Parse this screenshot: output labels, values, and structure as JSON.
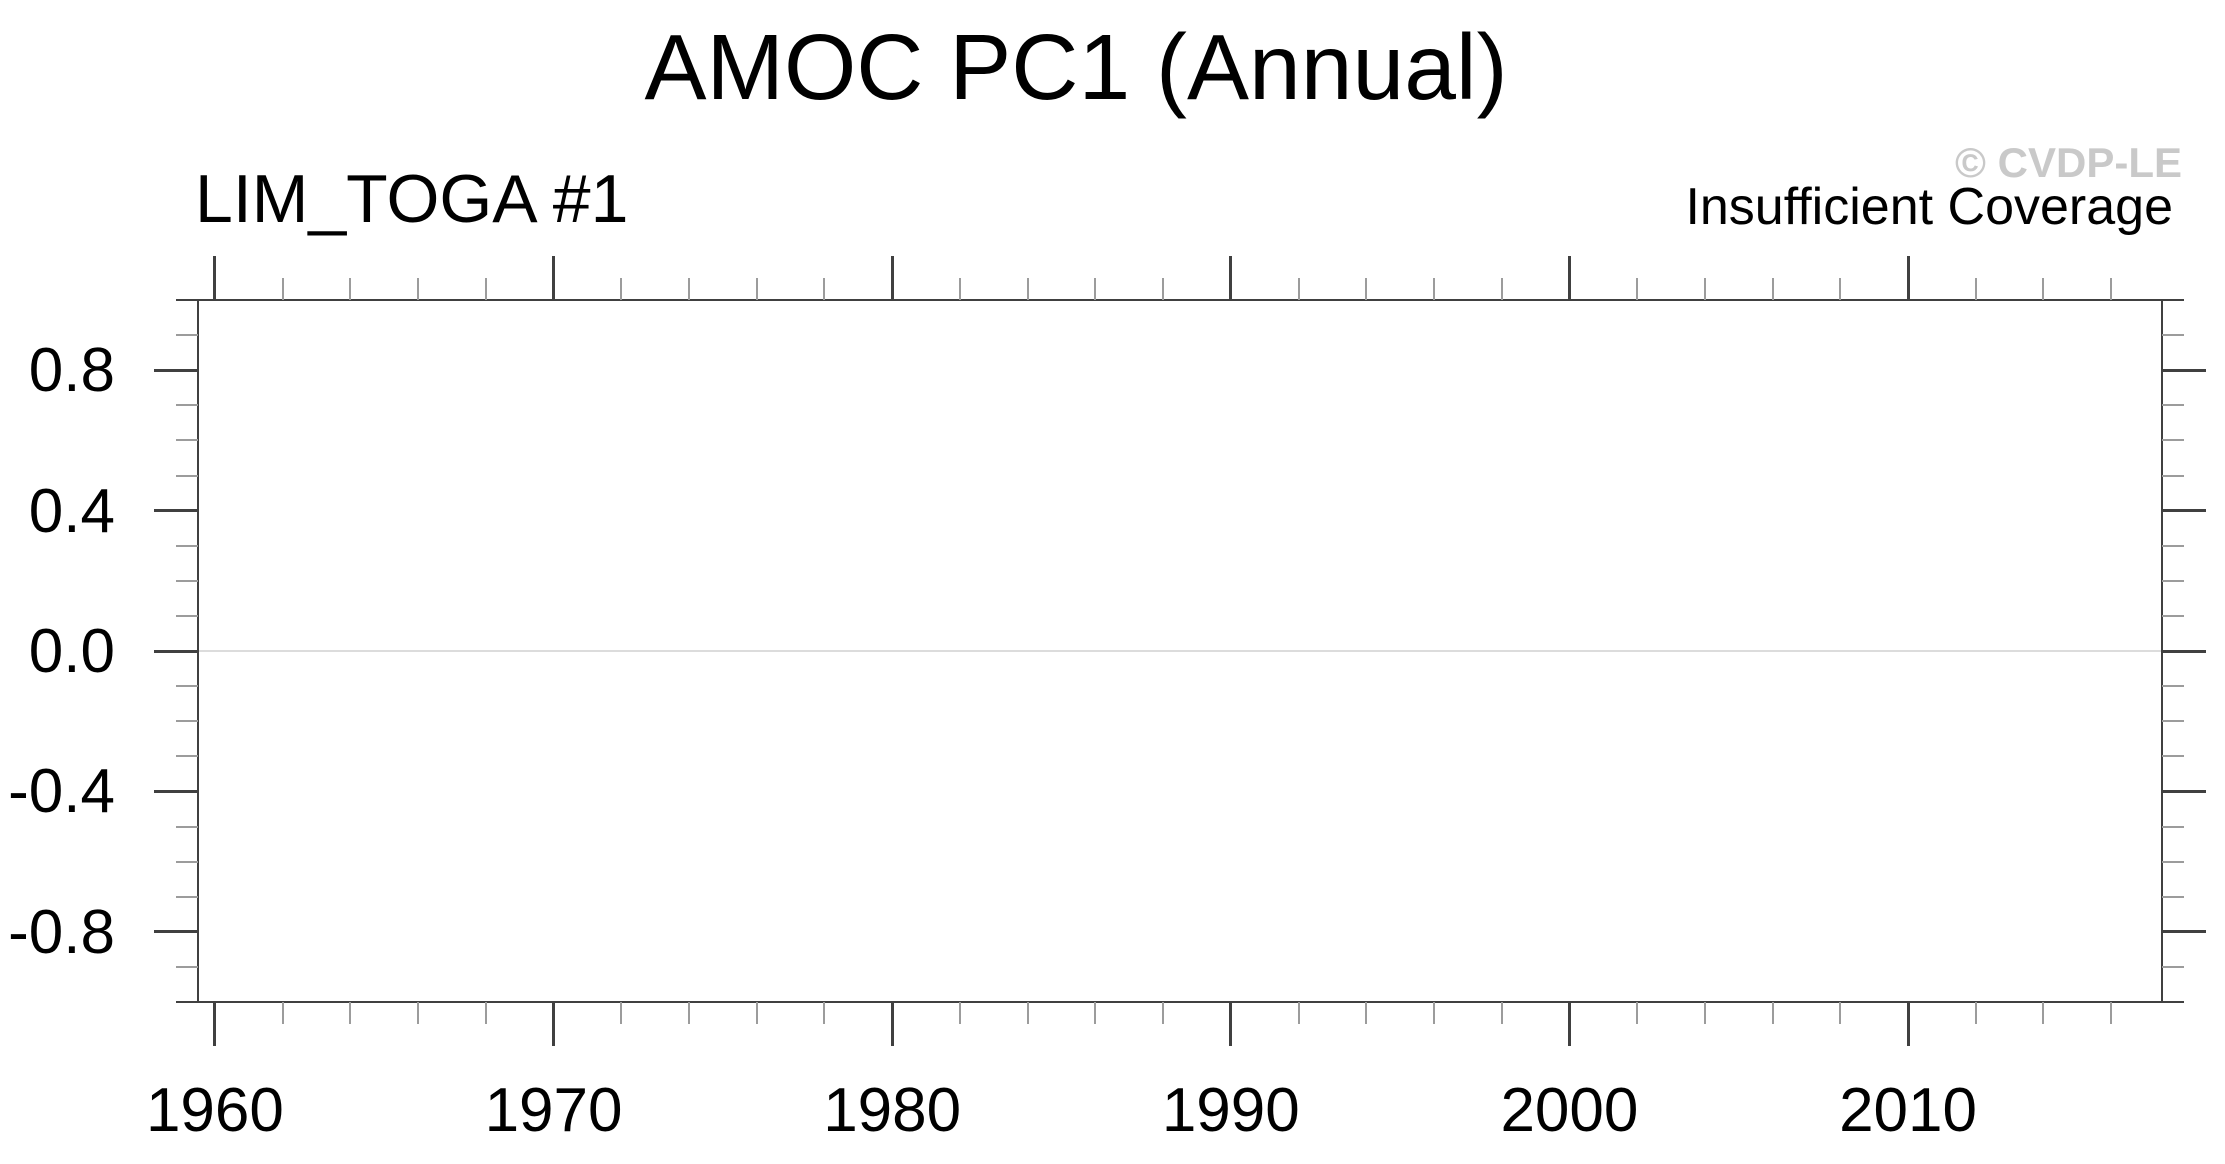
{
  "header": {
    "title": "AMOC PC1 (Annual)",
    "watermark": "© CVDP-LE",
    "run_label": "LIM_TOGA #1",
    "status_note": "Insufficient Coverage"
  },
  "colors": {
    "background": "#ffffff",
    "text": "#000000",
    "watermark": "#c9c9c9",
    "frame": "#404040",
    "major_tick": "#404040",
    "minor_tick": "#9c9c9c",
    "zero_line": "#dcdcdc"
  },
  "chart_data": {
    "type": "line",
    "title": "AMOC PC1 (Annual)",
    "subtitle_left": "LIM_TOGA #1",
    "subtitle_right": "Insufficient Coverage",
    "note": "Insufficient Coverage — plot area is empty, no data series drawn",
    "series": [],
    "xlim": [
      1959.5,
      2017.5
    ],
    "ylim": [
      -1.0,
      1.0
    ],
    "x_major_ticks": [
      1960,
      1970,
      1980,
      1990,
      2000,
      2010
    ],
    "x_tick_labels": [
      "1960",
      "1970",
      "1980",
      "1990",
      "2000",
      "2010"
    ],
    "x_minor_tick_step": 2,
    "y_major_ticks": [
      0.8,
      0.4,
      0.0,
      -0.4,
      -0.8
    ],
    "y_tick_labels": [
      "0.8",
      "0.4",
      "0.0",
      "-0.4",
      "-0.8"
    ],
    "y_minor_tick_step": 0.1,
    "zero_reference_line": 0.0,
    "grid": false,
    "legend": "none",
    "ticks": "outward on all four sides"
  }
}
